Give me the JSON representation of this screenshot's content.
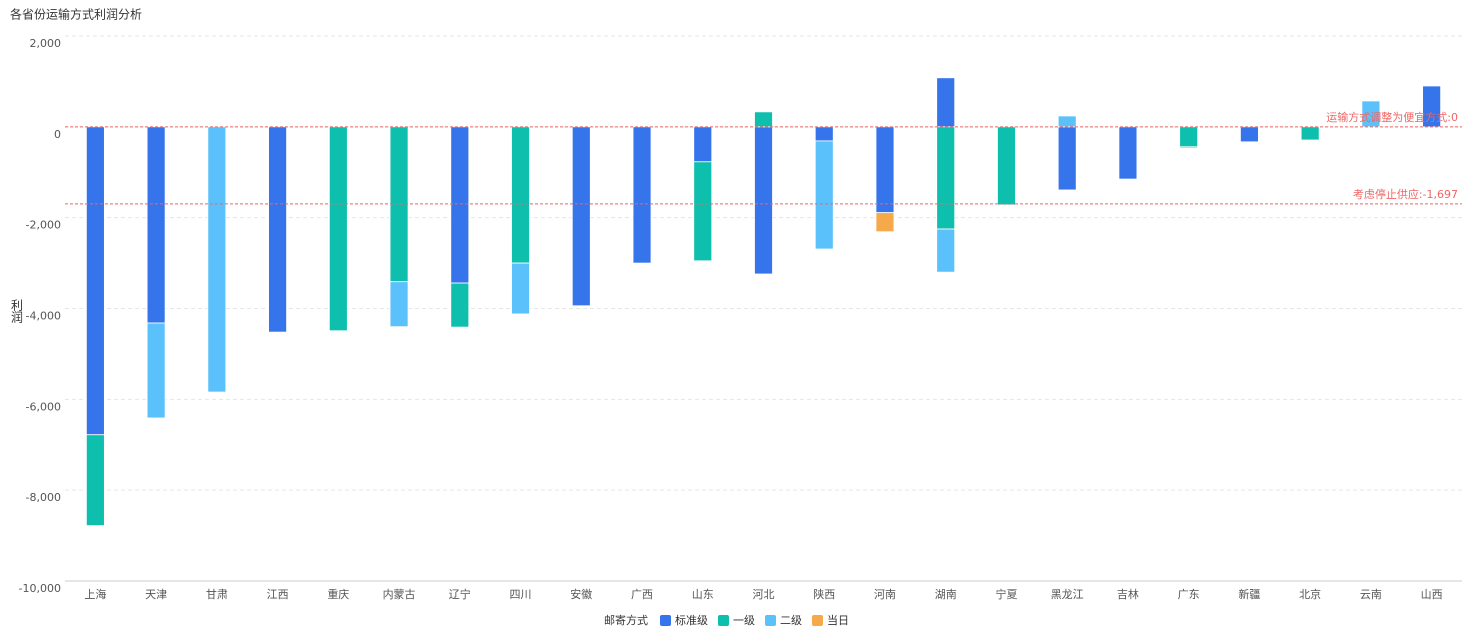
{
  "chart_data": {
    "type": "bar",
    "stacked": true,
    "title": "各省份运输方式利润分析",
    "y_label": "利润",
    "categories": [
      "上海",
      "天津",
      "甘肃",
      "江西",
      "重庆",
      "内蒙古",
      "辽宁",
      "四川",
      "安徽",
      "广西",
      "山东",
      "河北",
      "陕西",
      "河南",
      "湖南",
      "宁夏",
      "黑龙江",
      "吉林",
      "广东",
      "新疆",
      "北京",
      "云南",
      "山西"
    ],
    "series": [
      {
        "name": "标准级",
        "color": "#3574ea",
        "values": [
          -6780,
          -4320,
          null,
          -4520,
          null,
          null,
          -3440,
          null,
          -3940,
          -3000,
          -770,
          -3240,
          -310,
          -1890,
          1080,
          null,
          -1390,
          -1150,
          null,
          -330,
          null,
          null,
          900
        ]
      },
      {
        "name": "一级",
        "color": "#0fbfad",
        "values": [
          -2000,
          null,
          null,
          null,
          -4490,
          -3410,
          -970,
          -3000,
          null,
          null,
          -2180,
          330,
          null,
          null,
          -2250,
          -1720,
          null,
          null,
          -440,
          null,
          -290,
          null,
          null
        ]
      },
      {
        "name": "二级",
        "color": "#5bc1fb",
        "values": [
          null,
          -2090,
          -5840,
          null,
          null,
          -990,
          null,
          -1120,
          null,
          null,
          null,
          null,
          -2380,
          null,
          -950,
          null,
          240,
          null,
          null,
          null,
          null,
          570,
          null
        ]
      },
      {
        "name": "当日",
        "color": "#f5a94a",
        "values": [
          null,
          null,
          null,
          null,
          null,
          null,
          null,
          null,
          null,
          null,
          null,
          null,
          null,
          -420,
          null,
          null,
          null,
          null,
          -30,
          null,
          null,
          null,
          null
        ]
      }
    ],
    "legend_title": "邮寄方式",
    "reference_lines": [
      {
        "value": 0,
        "label": "运输方式调整为便宜方式:0"
      },
      {
        "value": -1697,
        "label": "考虑停止供应:-1,697"
      }
    ],
    "ylim": [
      -10000,
      2000
    ],
    "yticks": [
      {
        "value": -10000,
        "label": "-10,000"
      },
      {
        "value": -8000,
        "label": "-8,000"
      },
      {
        "value": -6000,
        "label": "-6,000"
      },
      {
        "value": -4000,
        "label": "-4,000"
      },
      {
        "value": -2000,
        "label": "-2,000"
      },
      0,
      {
        "value": 2000,
        "label": "2,000"
      }
    ],
    "grid": true
  }
}
